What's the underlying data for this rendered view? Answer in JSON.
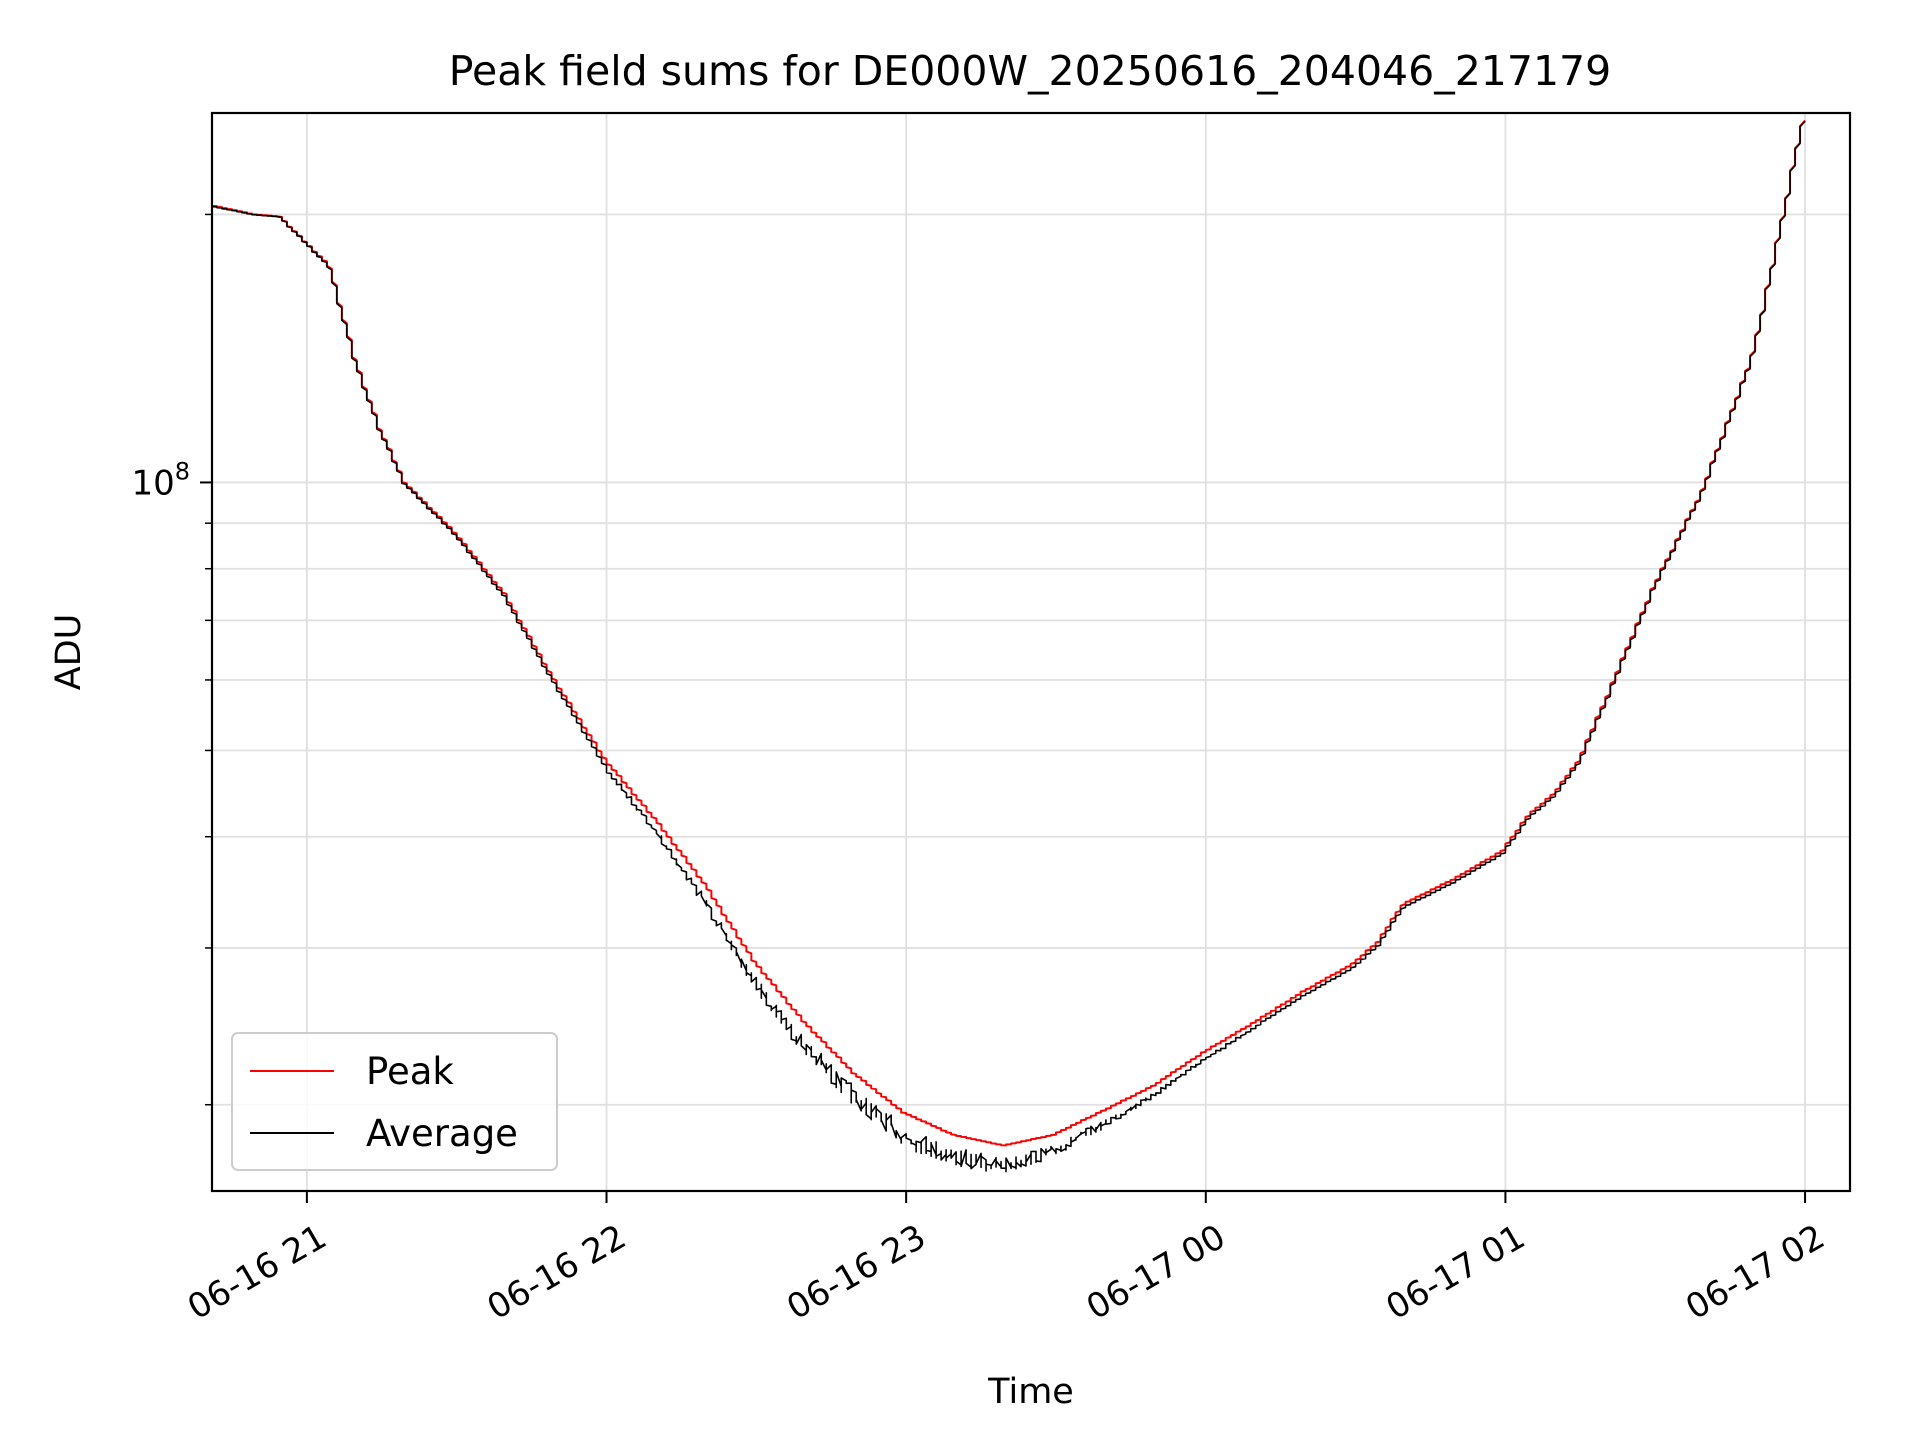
{
  "chart_data": {
    "type": "line",
    "title": "Peak field sums for DE000W_20250616_204046_217179",
    "xlabel": "Time",
    "ylabel": "ADU",
    "y_scale": "log",
    "y_major_tick_label": {
      "base": "10",
      "exponent": "8",
      "value": 100000000
    },
    "y_minor_tick_values": [
      20000000,
      30000000,
      40000000,
      50000000,
      60000000,
      70000000,
      80000000,
      90000000,
      200000000
    ],
    "xlim": [
      "2025-06-16 20:41",
      "2025-06-17 02:09"
    ],
    "ylim": [
      16000000,
      260000000
    ],
    "x_tick_values": [
      "2025-06-16 21:00",
      "2025-06-16 22:00",
      "2025-06-16 23:00",
      "2025-06-17 00:00",
      "2025-06-17 01:00",
      "2025-06-17 02:00"
    ],
    "x_tick_labels": [
      "06-16 21",
      "06-16 22",
      "06-16 23",
      "06-17 00",
      "06-17 01",
      "06-17 02"
    ],
    "grid": true,
    "legend_position": "lower-left",
    "x": [
      "2025-06-16 20:41",
      "2025-06-16 20:50",
      "2025-06-16 20:55",
      "2025-06-16 21:05",
      "2025-06-16 21:10",
      "2025-06-16 21:15",
      "2025-06-16 21:20",
      "2025-06-16 21:30",
      "2025-06-16 21:40",
      "2025-06-16 21:50",
      "2025-06-16 22:00",
      "2025-06-16 22:10",
      "2025-06-16 22:20",
      "2025-06-16 22:30",
      "2025-06-16 22:40",
      "2025-06-16 22:50",
      "2025-06-16 23:00",
      "2025-06-16 23:10",
      "2025-06-16 23:20",
      "2025-06-16 23:30",
      "2025-06-16 23:40",
      "2025-06-16 23:50",
      "2025-06-17 00:00",
      "2025-06-17 00:10",
      "2025-06-17 00:20",
      "2025-06-17 00:30",
      "2025-06-17 00:35",
      "2025-06-17 00:40",
      "2025-06-17 00:50",
      "2025-06-17 01:00",
      "2025-06-17 01:05",
      "2025-06-17 01:10",
      "2025-06-17 01:15",
      "2025-06-17 01:20",
      "2025-06-17 01:30",
      "2025-06-17 01:40",
      "2025-06-17 01:50",
      "2025-06-17 01:55",
      "2025-06-17 02:00"
    ],
    "series": [
      {
        "name": "Peak",
        "color": "#ff0000",
        "values": [
          205000000,
          200000000,
          199000000,
          175000000,
          138000000,
          115000000,
          100000000,
          88000000,
          75000000,
          60000000,
          49000000,
          42000000,
          35500000,
          29000000,
          24800000,
          21700000,
          19600000,
          18500000,
          18000000,
          18500000,
          19700000,
          21000000,
          22900000,
          24700000,
          26800000,
          28800000,
          30500000,
          33600000,
          35800000,
          38600000,
          42200000,
          44600000,
          48500000,
          56000000,
          76000000,
          98000000,
          139000000,
          186000000,
          255000000
        ]
      },
      {
        "name": "Average",
        "color": "#000000",
        "values": [
          204500000,
          199800000,
          198800000,
          174500000,
          137500000,
          114600000,
          99700000,
          87600000,
          74500000,
          59500000,
          48200000,
          41000000,
          34300000,
          27900000,
          23800000,
          20900000,
          18900000,
          17900000,
          17400000,
          18000000,
          19200000,
          20600000,
          22500000,
          24400000,
          26500000,
          28500000,
          30200000,
          33300000,
          35500000,
          38300000,
          41900000,
          44300000,
          48200000,
          55700000,
          75700000,
          97700000,
          138600000,
          185600000,
          254500000
        ]
      }
    ]
  }
}
